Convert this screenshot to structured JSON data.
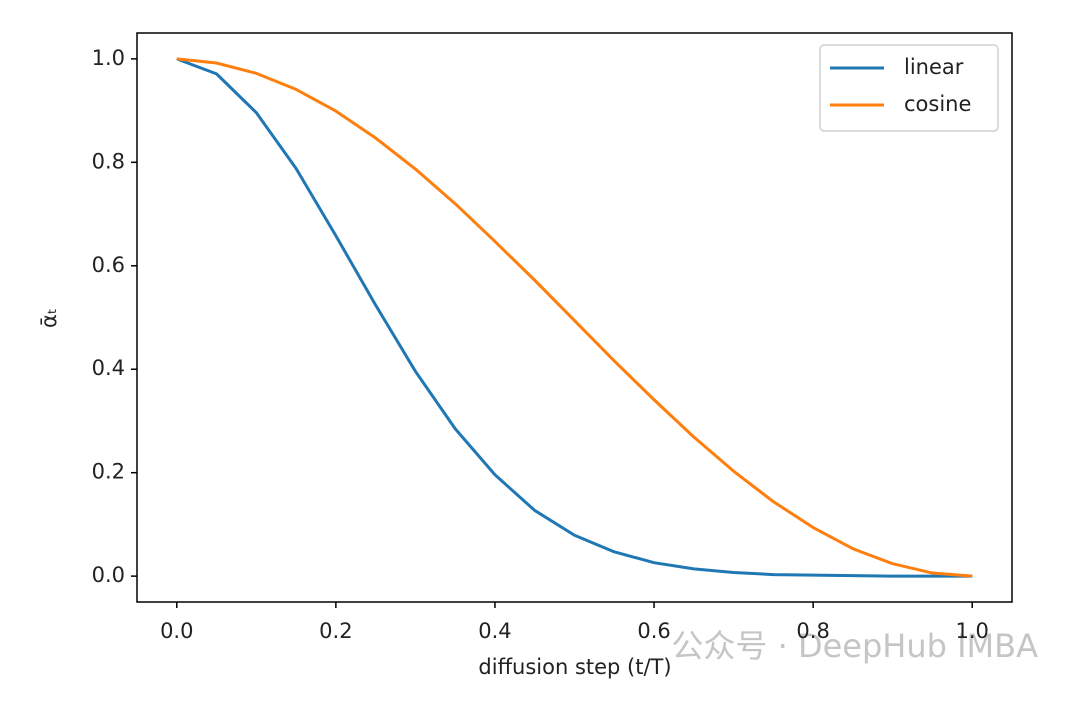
{
  "chart_data": {
    "type": "line",
    "x_label": "diffusion step (t/T)",
    "y_label": "ᾱₜ",
    "watermark": "公众号 · DeepHub IMBA",
    "x": [
      0,
      0.05,
      0.1,
      0.15,
      0.2,
      0.25,
      0.3,
      0.35,
      0.4,
      0.45,
      0.5,
      0.55,
      0.6,
      0.65,
      0.7,
      0.75,
      0.8,
      0.85,
      0.9,
      0.95,
      1.0
    ],
    "series": [
      {
        "name": "linear",
        "color": "#1f77b4",
        "values": [
          1,
          0.971,
          0.896,
          0.788,
          0.658,
          0.524,
          0.396,
          0.285,
          0.196,
          0.127,
          0.079,
          0.047,
          0.026,
          0.014,
          0.007,
          0.003,
          0.002,
          0.001,
          0,
          0,
          0
        ]
      },
      {
        "name": "cosine",
        "color": "#ff7f0e",
        "values": [
          1,
          0.992,
          0.972,
          0.941,
          0.899,
          0.847,
          0.787,
          0.72,
          0.647,
          0.572,
          0.494,
          0.416,
          0.341,
          0.269,
          0.203,
          0.144,
          0.094,
          0.053,
          0.024,
          0.006,
          0
        ]
      }
    ],
    "xlim": [
      -0.05,
      1.05
    ],
    "ylim": [
      -0.05,
      1.05
    ],
    "xticks": [
      {
        "value": 0,
        "label": "0.0"
      },
      {
        "value": 0.2,
        "label": "0.2"
      },
      {
        "value": 0.4,
        "label": "0.4"
      },
      {
        "value": 0.6,
        "label": "0.6"
      },
      {
        "value": 0.8,
        "label": "0.8"
      },
      {
        "value": 1.0,
        "label": "1.0"
      }
    ],
    "yticks": [
      {
        "value": 0,
        "label": "0.0"
      },
      {
        "value": 0.2,
        "label": "0.2"
      },
      {
        "value": 0.4,
        "label": "0.4"
      },
      {
        "value": 0.6,
        "label": "0.6"
      },
      {
        "value": 0.8,
        "label": "0.8"
      },
      {
        "value": 1.0,
        "label": "1.0"
      }
    ],
    "grid": false,
    "legend": "upper right"
  }
}
